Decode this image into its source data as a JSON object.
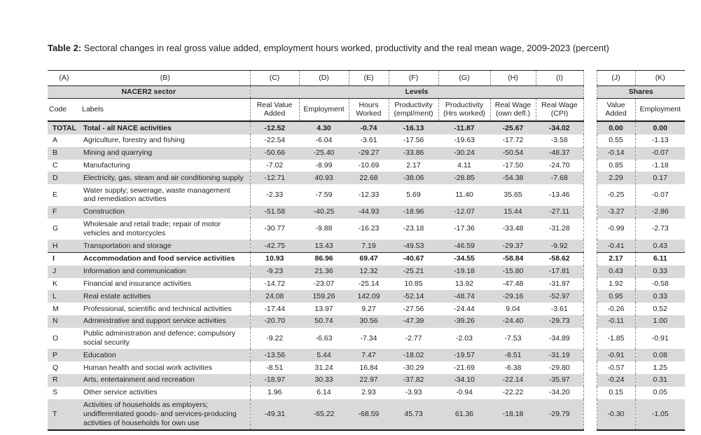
{
  "title": {
    "prefix": "Table 2:",
    "text": " Sectoral changes in real gross value added, employment hours worked, productivity and the real mean wage, 2009-2023 (percent)"
  },
  "table": {
    "letters": [
      "(A)",
      "(B)",
      "(C)",
      "(D)",
      "(E)",
      "(F)",
      "(G)",
      "(H)",
      "(I)",
      "(J)",
      "(K)"
    ],
    "groups": {
      "sector": "NACER2 sector",
      "levels": "Levels",
      "shares": "Shares"
    },
    "columns": {
      "code": "Code",
      "labels": "Labels",
      "levels": [
        "Real Value Added",
        "Employment",
        "Hours Worked",
        "Productivity (empl/ment)",
        "Productivity (Hrs worked)",
        "Real Wage (own defl.)",
        "Real Wage (CPI)"
      ],
      "shares": [
        "Value Added",
        "Employment"
      ]
    },
    "rows": [
      {
        "code": "TOTAL",
        "label": "Total - all NACE activities",
        "values": [
          "-12.52",
          "4.30",
          "-0.74",
          "-16.13",
          "-11.87",
          "-25.67",
          "-34.02",
          "0.00",
          "0.00"
        ],
        "bold": true,
        "shaded": true
      },
      {
        "code": "A",
        "label": "Agriculture, forestry and fishing",
        "values": [
          "-22.54",
          "-6.04",
          "-3.61",
          "-17.56",
          "-19.63",
          "-17.72",
          "-3.58",
          "0.55",
          "-1.13"
        ]
      },
      {
        "code": "B",
        "label": "Mining and quarrying",
        "values": [
          "-50.66",
          "-25.40",
          "-29.27",
          "-33.86",
          "-30.24",
          "-50.54",
          "-48.37",
          "-0.14",
          "-0.07"
        ],
        "shaded": true
      },
      {
        "code": "C",
        "label": "Manufacturing",
        "values": [
          "-7.02",
          "-8.99",
          "-10.69",
          "2.17",
          "4.11",
          "-17.50",
          "-24.70",
          "0.85",
          "-1.18"
        ]
      },
      {
        "code": "D",
        "label": "Electricity, gas, steam and air conditioning supply",
        "values": [
          "-12.71",
          "40.93",
          "22.68",
          "-38.06",
          "-28.85",
          "-54.38",
          "-7.68",
          "2.29",
          "0.17"
        ],
        "shaded": true
      },
      {
        "code": "E",
        "label": "Water supply; sewerage, waste management and remediation activities",
        "values": [
          "-2.33",
          "-7.59",
          "-12.33",
          "5.69",
          "11.40",
          "35.65",
          "-13.46",
          "-0.25",
          "-0.07"
        ]
      },
      {
        "code": "F",
        "label": "Construction",
        "values": [
          "-51.58",
          "-40.25",
          "-44.93",
          "-18.96",
          "-12.07",
          "15.44",
          "-27.11",
          "-3.27",
          "-2.86"
        ],
        "shaded": true
      },
      {
        "code": "G",
        "label": "Wholesale and retail trade; repair of motor vehicles and motorcycles",
        "values": [
          "-30.77",
          "-9.88",
          "-16.23",
          "-23.18",
          "-17.36",
          "-33.48",
          "-31.28",
          "-0.99",
          "-2.73"
        ]
      },
      {
        "code": "H",
        "label": "Transportation and storage",
        "values": [
          "-42.75",
          "13.43",
          "7.19",
          "-49.53",
          "-46.59",
          "-29.37",
          "-9.92",
          "-0.41",
          "0.43"
        ],
        "shaded": true
      },
      {
        "code": "I",
        "label": "Accommodation and food service activities",
        "values": [
          "10.93",
          "86.96",
          "69.47",
          "-40.67",
          "-34.55",
          "-58.84",
          "-58.62",
          "2.17",
          "6.11"
        ],
        "bold": true,
        "rule_top": true
      },
      {
        "code": "J",
        "label": "Information and communication",
        "values": [
          "-9.23",
          "21.36",
          "12.32",
          "-25.21",
          "-19.18",
          "-15.80",
          "-17.81",
          "0.43",
          "0.33"
        ],
        "shaded": true
      },
      {
        "code": "K",
        "label": "Financial and insurance activities",
        "values": [
          "-14.72",
          "-23.07",
          "-25.14",
          "10.85",
          "13.92",
          "-47.48",
          "-31.97",
          "1.92",
          "-0.58"
        ]
      },
      {
        "code": "L",
        "label": "Real estate activities",
        "values": [
          "24.08",
          "159.26",
          "142.09",
          "-52.14",
          "-48.74",
          "-29.16",
          "-52.97",
          "0.95",
          "0.33"
        ],
        "shaded": true
      },
      {
        "code": "M",
        "label": "Professional, scientific and technical activities",
        "values": [
          "-17.44",
          "13.97",
          "9.27",
          "-27.56",
          "-24.44",
          "9.04",
          "-3.61",
          "-0.26",
          "0.52"
        ]
      },
      {
        "code": "N",
        "label": "Administrative and support service activities",
        "values": [
          "-20.70",
          "50.74",
          "30.56",
          "-47.39",
          "-39.26",
          "-24.40",
          "-29.73",
          "-0.11",
          "1.00"
        ],
        "shaded": true
      },
      {
        "code": "O",
        "label": "Public administration and defence; compulsory social security",
        "values": [
          "-9.22",
          "-6.63",
          "-7.34",
          "-2.77",
          "-2.03",
          "-7.53",
          "-34.89",
          "-1.85",
          "-0.91"
        ]
      },
      {
        "code": "P",
        "label": "Education",
        "values": [
          "-13.56",
          "5.44",
          "7.47",
          "-18.02",
          "-19.57",
          "-8.51",
          "-31.19",
          "-0.91",
          "0.08"
        ],
        "shaded": true
      },
      {
        "code": "Q",
        "label": "Human health and social work activities",
        "values": [
          "-8.51",
          "31.24",
          "16.84",
          "-30.29",
          "-21.69",
          "-6.38",
          "-29.80",
          "-0.57",
          "1.25"
        ]
      },
      {
        "code": "R",
        "label": "Arts, entertainment and recreation",
        "values": [
          "-18.97",
          "30.33",
          "22.97",
          "-37.82",
          "-34.10",
          "-22.14",
          "-35.97",
          "-0.24",
          "0.31"
        ],
        "shaded": true
      },
      {
        "code": "S",
        "label": "Other service activities",
        "values": [
          "1.96",
          "6.14",
          "2.93",
          "-3.93",
          "-0.94",
          "-22.22",
          "-34.20",
          "0.15",
          "0.05"
        ]
      },
      {
        "code": "T",
        "label": "Activities of households as employers; undifferentiated goods- and services-producing activities of households for own use",
        "values": [
          "-49.31",
          "-65.22",
          "-68.59",
          "45.73",
          "61.36",
          "-18.18",
          "-29.79",
          "-0.30",
          "-1.05"
        ],
        "shaded": true
      }
    ],
    "colors": {
      "row_shading": "#d9d9d9",
      "rule": "#262626",
      "dashed_divider": "#8f8f8f"
    }
  }
}
